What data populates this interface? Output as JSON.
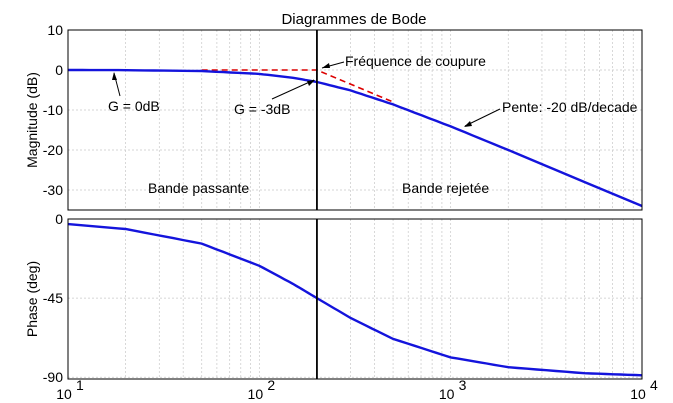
{
  "chart_data": [
    {
      "type": "line",
      "title": "Diagrammes de Bode",
      "xlabel": "",
      "ylabel": "Magnitude (dB)",
      "x_scale": "log",
      "xlim": [
        10,
        10000
      ],
      "ylim": [
        -35,
        10
      ],
      "yticks": [
        10,
        0,
        -10,
        -20,
        -30
      ],
      "grid": true,
      "cutoff_frequency": 200,
      "series": [
        {
          "x": [
            10,
            20,
            50,
            100,
            150,
            200,
            300,
            500,
            1000,
            2000,
            5000,
            10000
          ],
          "values": [
            0,
            -0.04,
            -0.26,
            -0.97,
            -1.94,
            -3.0,
            -5.1,
            -8.6,
            -14.1,
            -20.0,
            -28.0,
            -34.0
          ]
        },
        {
          "x": [
            50,
            200,
            500
          ],
          "values": [
            0,
            0,
            -8
          ]
        }
      ],
      "annotations": {
        "cutoff": "Fréquence de coupure",
        "gain_zero": "G = 0dB",
        "gain_minus3": "G = -3dB",
        "slope": "Pente: -20 dB/decade",
        "passband": "Bande passante",
        "stopband": "Bande rejetée"
      }
    },
    {
      "type": "line",
      "xlabel": "",
      "ylabel": "Phase (deg)",
      "x_scale": "log",
      "xlim": [
        10,
        10000
      ],
      "ylim": [
        -91,
        0
      ],
      "yticks": [
        0,
        -45,
        -90
      ],
      "xtick_labels": [
        "10",
        "10",
        "10",
        "10"
      ],
      "xtick_exponents": [
        "1",
        "2",
        "3",
        "4"
      ],
      "grid": true,
      "cutoff_frequency": 200,
      "series": [
        {
          "x": [
            10,
            20,
            50,
            100,
            150,
            200,
            300,
            500,
            1000,
            2000,
            5000,
            10000
          ],
          "values": [
            -2.9,
            -5.7,
            -14.0,
            -26.6,
            -36.9,
            -45.0,
            -56.3,
            -68.2,
            -78.7,
            -84.3,
            -87.7,
            -88.9
          ]
        }
      ]
    }
  ],
  "colors": {
    "response": "#1414dc",
    "asymptote": "#dc0000",
    "cutoff_line": "#000000",
    "grid": "#c8c8c8"
  }
}
